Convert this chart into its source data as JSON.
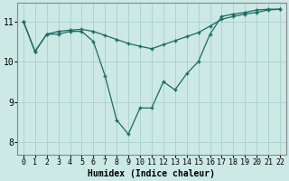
{
  "xlabel": "Humidex (Indice chaleur)",
  "xlim": [
    -0.5,
    22.5
  ],
  "ylim": [
    7.7,
    11.45
  ],
  "yticks": [
    8,
    9,
    10,
    11
  ],
  "xticks": [
    0,
    1,
    2,
    3,
    4,
    5,
    6,
    7,
    8,
    9,
    10,
    11,
    12,
    13,
    14,
    15,
    16,
    17,
    18,
    19,
    20,
    21,
    22
  ],
  "bg_color": "#cce9e5",
  "grid_color": "#aacfcb",
  "line_color": "#1a6b60",
  "line1_x": [
    0,
    1,
    2,
    3,
    4,
    5,
    6,
    7,
    8,
    9,
    10,
    11,
    12,
    13,
    14,
    15,
    16,
    17,
    18,
    19,
    20,
    21,
    22
  ],
  "line1_y": [
    11.0,
    10.25,
    10.68,
    10.68,
    10.75,
    10.75,
    10.5,
    9.65,
    8.55,
    8.2,
    8.85,
    8.85,
    9.5,
    9.3,
    9.7,
    10.0,
    10.68,
    11.12,
    11.18,
    11.22,
    11.28,
    11.3,
    11.3
  ],
  "line2_x": [
    0,
    1,
    2,
    3,
    4,
    5,
    6,
    7,
    8,
    9,
    10,
    11,
    12,
    13,
    14,
    15,
    16,
    17,
    18,
    19,
    20,
    21,
    22
  ],
  "line2_y": [
    11.0,
    10.25,
    10.68,
    10.75,
    10.78,
    10.8,
    10.75,
    10.65,
    10.55,
    10.45,
    10.38,
    10.32,
    10.42,
    10.52,
    10.62,
    10.72,
    10.88,
    11.05,
    11.12,
    11.18,
    11.22,
    11.28,
    11.3
  ],
  "marker": "+",
  "markersize": 3.5,
  "linewidth": 0.9,
  "markeredgewidth": 1.0,
  "tick_fontsize": 6.0,
  "xlabel_fontsize": 7.0
}
